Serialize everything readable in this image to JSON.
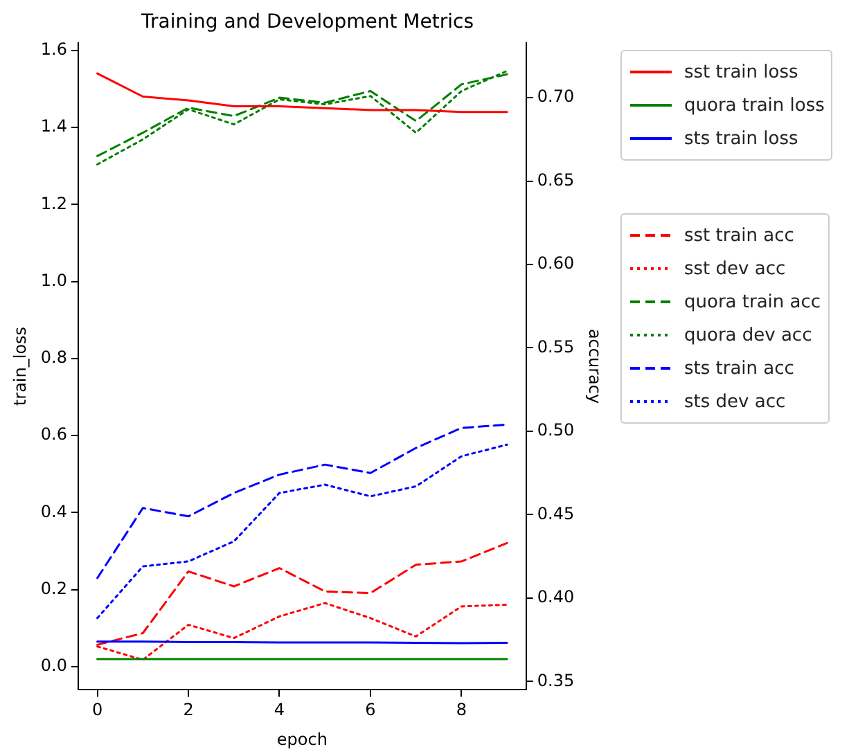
{
  "chart_data": {
    "type": "line",
    "title": "Training and Development Metrics",
    "xlabel": "epoch",
    "ylabel": "train_loss",
    "y2label": "accuracy",
    "x": [
      0,
      1,
      2,
      3,
      4,
      5,
      6,
      7,
      8,
      9
    ],
    "xlim": [
      -0.42,
      9.42
    ],
    "xticks": [
      0,
      2,
      4,
      6,
      8
    ],
    "ylim": [
      -0.06,
      1.62
    ],
    "yticks": [
      {
        "value": 0,
        "label": "0.0"
      },
      0.2,
      0.4,
      0.6,
      0.8,
      {
        "value": 1,
        "label": "1.0"
      },
      1.2,
      1.4,
      1.6
    ],
    "y2lim": [
      0.345,
      0.733
    ],
    "y2ticks": [
      {
        "value": 0.35,
        "label": "0.35"
      },
      {
        "value": 0.4,
        "label": "0.40"
      },
      0.45,
      {
        "value": 0.5,
        "label": "0.50"
      },
      0.55,
      {
        "value": 0.6,
        "label": "0.60"
      },
      0.65,
      {
        "value": 0.7,
        "label": "0.70"
      }
    ],
    "grid": false,
    "legend": "right",
    "marker": "none",
    "series": [
      {
        "name": "sst train loss",
        "color": "#ff0000",
        "line_style": "solid",
        "values": [
          1.54,
          1.48,
          1.47,
          1.455,
          1.455,
          1.45,
          1.445,
          1.445,
          1.44,
          1.44
        ]
      },
      {
        "name": "quora train loss",
        "color": "#008000",
        "line_style": "solid",
        "values": [
          0.02,
          0.02,
          0.02,
          0.02,
          0.02,
          0.02,
          0.02,
          0.02,
          0.02,
          0.02
        ]
      },
      {
        "name": "sts train loss",
        "color": "#0000ff",
        "line_style": "solid",
        "values": [
          0.065,
          0.065,
          0.064,
          0.064,
          0.063,
          0.063,
          0.063,
          0.062,
          0.061,
          0.062
        ]
      },
      {
        "name": "sst train acc",
        "color": "#ff0000",
        "line_style": "dashed",
        "axis": "y2",
        "values": [
          0.372,
          0.379,
          0.416,
          0.407,
          0.418,
          0.404,
          0.403,
          0.42,
          0.422,
          0.433
        ]
      },
      {
        "name": "sst dev acc",
        "color": "#ff0000",
        "line_style": "dotted",
        "axis": "y2",
        "values": [
          0.371,
          0.363,
          0.384,
          0.376,
          0.389,
          0.397,
          0.388,
          0.377,
          0.395,
          0.396
        ]
      },
      {
        "name": "quora train acc",
        "color": "#008000",
        "line_style": "dashed",
        "axis": "y2",
        "values": [
          0.665,
          0.679,
          0.694,
          0.689,
          0.7,
          0.697,
          0.704,
          0.686,
          0.708,
          0.714
        ]
      },
      {
        "name": "quora dev acc",
        "color": "#008000",
        "line_style": "dotted",
        "axis": "y2",
        "values": [
          0.66,
          0.675,
          0.693,
          0.684,
          0.699,
          0.696,
          0.701,
          0.679,
          0.704,
          0.716
        ]
      },
      {
        "name": "sts train acc",
        "color": "#0000ff",
        "line_style": "dashed",
        "axis": "y2",
        "values": [
          0.412,
          0.454,
          0.449,
          0.463,
          0.474,
          0.48,
          0.475,
          0.49,
          0.502,
          0.504
        ]
      },
      {
        "name": "sts dev acc",
        "color": "#0000ff",
        "line_style": "dotted",
        "axis": "y2",
        "values": [
          0.388,
          0.419,
          0.422,
          0.434,
          0.463,
          0.468,
          0.461,
          0.467,
          0.485,
          0.492
        ]
      }
    ]
  }
}
